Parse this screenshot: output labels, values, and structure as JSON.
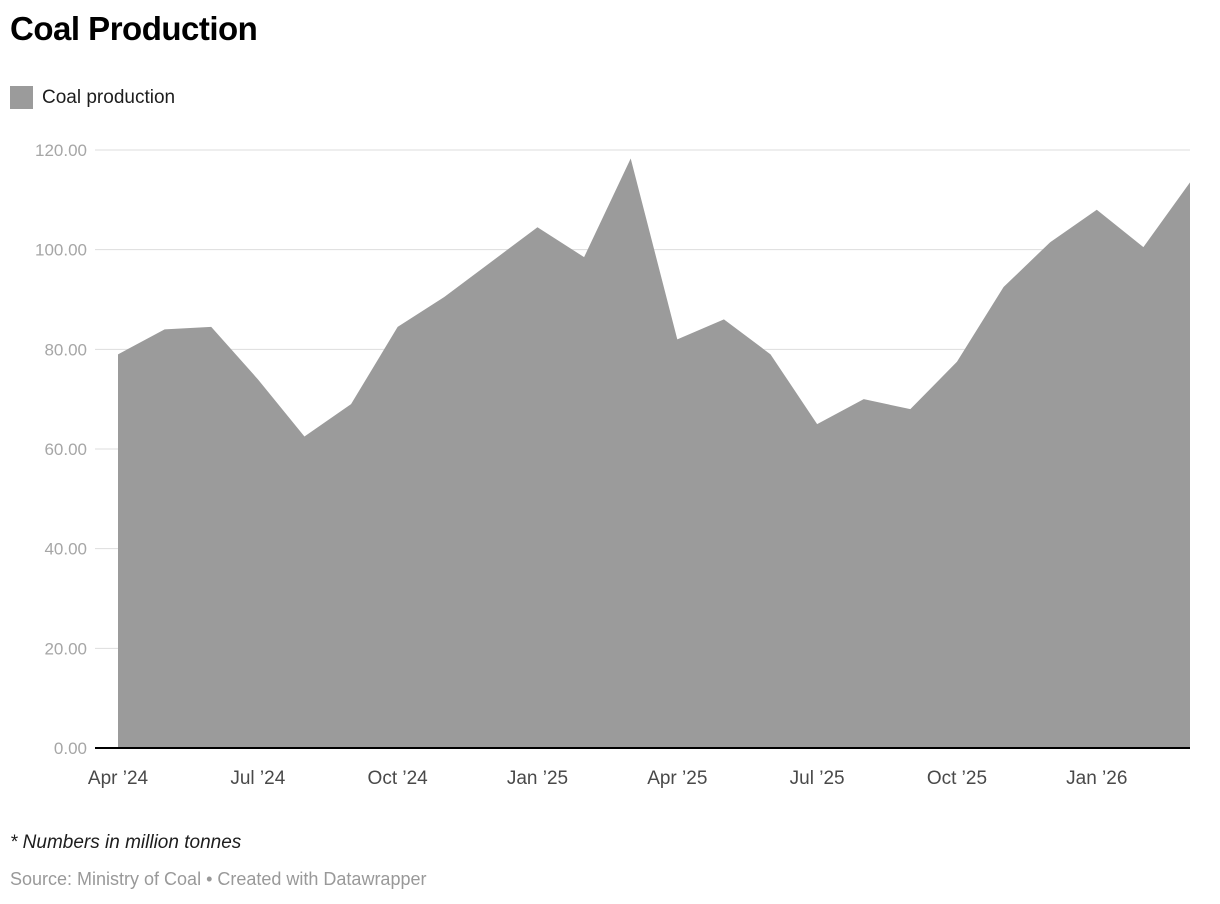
{
  "chart_data": {
    "type": "area",
    "title": "Coal Production",
    "legend_label": "Coal production",
    "unit_note": "* Numbers in million tonnes",
    "source": "Source: Ministry of Coal • Created with Datawrapper",
    "x": [
      "Apr 2024",
      "May 2024",
      "Jun 2024",
      "Jul 2024",
      "Aug 2024",
      "Sep 2024",
      "Oct 2024",
      "Nov 2024",
      "Dec 2024",
      "Jan 2025",
      "Feb 2025",
      "Mar 2025",
      "Apr 2025",
      "May 2025",
      "Jun 2025",
      "Jul 2025",
      "Aug 2025",
      "Sep 2025",
      "Oct 2025",
      "Nov 2025",
      "Dec 2025",
      "Jan 2026",
      "Feb 2026",
      "Mar 2026"
    ],
    "values": [
      79.0,
      84.0,
      84.5,
      74.0,
      62.5,
      69.0,
      84.5,
      90.5,
      97.5,
      104.5,
      98.5,
      118.3,
      82.0,
      86.0,
      79.0,
      65.0,
      70.0,
      68.0,
      77.5,
      92.5,
      101.5,
      108.0,
      100.5,
      113.5
    ],
    "x_tick_labels": [
      {
        "index": 0,
        "label": "Apr ’24"
      },
      {
        "index": 3,
        "label": "Jul ’24"
      },
      {
        "index": 6,
        "label": "Oct ’24"
      },
      {
        "index": 9,
        "label": "Jan ’25"
      },
      {
        "index": 12,
        "label": "Apr ’25"
      },
      {
        "index": 15,
        "label": "Jul ’25"
      },
      {
        "index": 18,
        "label": "Oct ’25"
      },
      {
        "index": 21,
        "label": "Jan ’26"
      }
    ],
    "y_ticks": [
      0,
      20,
      40,
      60,
      80,
      100,
      120
    ],
    "y_tick_format_decimals": 2,
    "ylim": [
      0,
      120
    ],
    "grid": true,
    "legend_position": "top-left",
    "colors": {
      "area": "#9b9b9b",
      "gridline": "#dddddd",
      "baseline": "#000000",
      "y_label": "#a6a6a6",
      "x_label": "#494949"
    }
  }
}
